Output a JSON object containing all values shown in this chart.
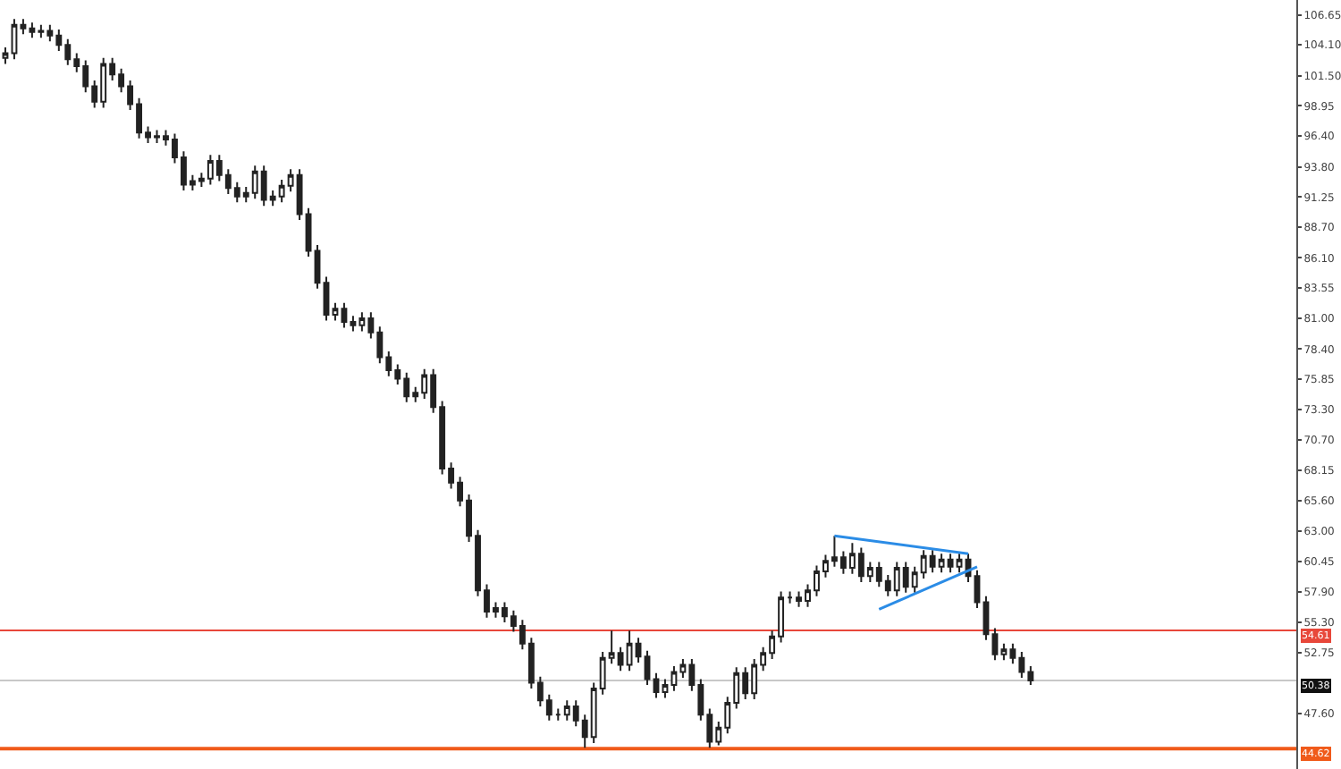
{
  "chart_data": {
    "type": "candlestick",
    "color": "#222222",
    "categories": [
      null,
      null,
      null,
      null,
      null,
      null,
      null,
      null,
      null,
      null,
      null,
      null,
      null,
      null,
      null,
      null,
      null,
      null,
      null,
      null,
      null,
      null,
      null,
      null,
      null,
      null,
      null,
      null,
      null,
      null,
      null,
      null,
      null,
      null,
      null,
      null,
      null,
      null,
      null,
      null,
      null,
      null,
      null,
      null,
      null,
      null,
      null,
      null,
      null,
      null,
      null,
      null,
      null,
      null,
      null,
      null,
      null,
      null,
      null,
      null,
      null,
      null,
      null,
      null,
      null,
      null,
      null,
      null,
      null,
      null,
      null,
      null,
      null,
      null,
      null,
      null,
      null,
      null,
      null,
      null,
      null,
      null,
      null,
      null,
      null,
      null,
      null,
      null,
      null,
      null,
      null,
      null,
      null,
      null,
      null,
      null,
      null,
      null,
      null,
      null,
      null,
      null,
      null,
      null,
      null,
      null,
      null,
      null,
      null,
      null,
      null,
      null,
      null,
      null,
      null,
      null,
      null,
      null,
      null,
      null,
      null,
      null,
      null,
      null,
      null,
      null,
      null,
      null,
      null,
      null,
      null,
      null,
      null,
      null,
      null,
      null,
      null,
      null,
      null,
      null,
      null,
      null,
      null,
      null,
      null
    ],
    "ohlc": [
      [
        103.0,
        103.9,
        102.5,
        103.4
      ],
      [
        103.4,
        106.3,
        102.9,
        105.8
      ],
      [
        105.8,
        106.3,
        105.0,
        105.5
      ],
      [
        105.5,
        106.0,
        104.7,
        105.2
      ],
      [
        105.2,
        105.8,
        104.7,
        105.3
      ],
      [
        105.3,
        105.8,
        104.4,
        104.9
      ],
      [
        104.9,
        105.4,
        103.6,
        104.1
      ],
      [
        104.1,
        104.6,
        102.4,
        102.9
      ],
      [
        102.9,
        103.4,
        101.8,
        102.3
      ],
      [
        102.3,
        102.8,
        100.1,
        100.6
      ],
      [
        100.6,
        101.1,
        98.8,
        99.3
      ],
      [
        99.3,
        103.0,
        98.8,
        102.5
      ],
      [
        102.5,
        103.0,
        101.1,
        101.6
      ],
      [
        101.6,
        102.1,
        100.1,
        100.6
      ],
      [
        100.6,
        101.1,
        98.6,
        99.1
      ],
      [
        99.1,
        99.6,
        96.2,
        96.7
      ],
      [
        96.7,
        97.2,
        95.8,
        96.3
      ],
      [
        96.3,
        96.9,
        95.8,
        96.4
      ],
      [
        96.4,
        96.9,
        95.6,
        96.1
      ],
      [
        96.1,
        96.6,
        94.1,
        94.6
      ],
      [
        94.6,
        95.1,
        91.8,
        92.3
      ],
      [
        92.3,
        93.1,
        91.8,
        92.6
      ],
      [
        92.6,
        93.3,
        92.1,
        92.8
      ],
      [
        92.8,
        94.8,
        92.3,
        94.3
      ],
      [
        94.3,
        94.8,
        92.6,
        93.1
      ],
      [
        93.1,
        93.6,
        91.5,
        92.0
      ],
      [
        92.0,
        92.5,
        90.8,
        91.3
      ],
      [
        91.3,
        92.1,
        90.8,
        91.6
      ],
      [
        91.6,
        93.9,
        91.1,
        93.4
      ],
      [
        93.4,
        93.9,
        90.5,
        91.0
      ],
      [
        91.0,
        91.8,
        90.5,
        91.3
      ],
      [
        91.3,
        92.7,
        90.8,
        92.2
      ],
      [
        92.2,
        93.6,
        91.7,
        93.1
      ],
      [
        93.1,
        93.6,
        89.3,
        89.8
      ],
      [
        89.8,
        90.3,
        86.2,
        86.7
      ],
      [
        86.7,
        87.2,
        83.5,
        84.0
      ],
      [
        84.0,
        84.5,
        80.8,
        81.3
      ],
      [
        81.3,
        82.3,
        80.8,
        81.8
      ],
      [
        81.8,
        82.3,
        80.2,
        80.7
      ],
      [
        80.7,
        81.2,
        79.9,
        80.4
      ],
      [
        80.4,
        81.5,
        79.9,
        81.0
      ],
      [
        81.0,
        81.5,
        79.3,
        79.8
      ],
      [
        79.8,
        80.3,
        77.2,
        77.7
      ],
      [
        77.7,
        78.2,
        76.1,
        76.6
      ],
      [
        76.6,
        77.1,
        75.4,
        75.9
      ],
      [
        75.9,
        76.4,
        73.9,
        74.4
      ],
      [
        74.4,
        75.2,
        73.9,
        74.7
      ],
      [
        74.7,
        76.7,
        74.2,
        76.2
      ],
      [
        76.2,
        76.7,
        73.0,
        73.5
      ],
      [
        73.5,
        74.0,
        67.8,
        68.3
      ],
      [
        68.3,
        68.8,
        66.6,
        67.1
      ],
      [
        67.1,
        67.6,
        65.1,
        65.6
      ],
      [
        65.6,
        66.1,
        62.1,
        62.6
      ],
      [
        62.6,
        63.1,
        57.5,
        58.0
      ],
      [
        58.0,
        58.5,
        55.7,
        56.2
      ],
      [
        56.2,
        57.0,
        55.7,
        56.5
      ],
      [
        56.5,
        57.0,
        55.3,
        55.8
      ],
      [
        55.8,
        56.3,
        54.5,
        55.0
      ],
      [
        55.0,
        55.5,
        53.0,
        53.5
      ],
      [
        53.5,
        54.0,
        49.7,
        50.2
      ],
      [
        50.2,
        50.7,
        48.2,
        48.7
      ],
      [
        48.7,
        49.2,
        47.0,
        47.5
      ],
      [
        47.5,
        48.0,
        47.0,
        47.5
      ],
      [
        47.5,
        48.7,
        47.0,
        48.2
      ],
      [
        48.2,
        48.7,
        46.5,
        47.0
      ],
      [
        47.0,
        47.5,
        44.7,
        45.6
      ],
      [
        45.6,
        50.2,
        45.1,
        49.7
      ],
      [
        49.7,
        52.8,
        49.2,
        52.3
      ],
      [
        52.3,
        54.6,
        51.8,
        52.7
      ],
      [
        52.7,
        53.2,
        51.2,
        51.7
      ],
      [
        51.7,
        54.6,
        51.2,
        53.5
      ],
      [
        53.5,
        54.0,
        51.9,
        52.4
      ],
      [
        52.4,
        52.9,
        50.0,
        50.5
      ],
      [
        50.5,
        51.0,
        48.9,
        49.4
      ],
      [
        49.4,
        50.5,
        48.9,
        50.0
      ],
      [
        50.0,
        51.6,
        49.5,
        51.1
      ],
      [
        51.1,
        52.2,
        50.6,
        51.7
      ],
      [
        51.7,
        52.2,
        49.5,
        50.0
      ],
      [
        50.0,
        50.5,
        47.0,
        47.5
      ],
      [
        47.5,
        48.0,
        44.7,
        45.2
      ],
      [
        45.2,
        46.9,
        44.9,
        46.4
      ],
      [
        46.4,
        49.0,
        45.9,
        48.5
      ],
      [
        48.5,
        51.5,
        48.0,
        51.0
      ],
      [
        51.0,
        51.5,
        48.8,
        49.3
      ],
      [
        49.3,
        52.2,
        48.8,
        51.7
      ],
      [
        51.7,
        53.2,
        51.2,
        52.7
      ],
      [
        52.7,
        54.6,
        52.2,
        54.1
      ],
      [
        54.1,
        57.9,
        53.6,
        57.4
      ],
      [
        57.4,
        57.9,
        56.9,
        57.4
      ],
      [
        57.4,
        57.9,
        56.6,
        57.1
      ],
      [
        57.1,
        58.5,
        56.6,
        58.0
      ],
      [
        58.0,
        60.1,
        57.5,
        59.6
      ],
      [
        59.6,
        61.0,
        59.1,
        60.5
      ],
      [
        60.5,
        62.6,
        60.0,
        60.8
      ],
      [
        60.8,
        61.3,
        59.4,
        59.9
      ],
      [
        59.9,
        62.0,
        59.4,
        61.1
      ],
      [
        61.1,
        61.6,
        58.7,
        59.2
      ],
      [
        59.2,
        60.4,
        58.7,
        59.9
      ],
      [
        59.9,
        60.4,
        58.3,
        58.8
      ],
      [
        58.8,
        59.3,
        57.5,
        58.0
      ],
      [
        58.0,
        60.4,
        57.5,
        59.9
      ],
      [
        59.9,
        60.4,
        57.8,
        58.3
      ],
      [
        58.3,
        60.0,
        57.8,
        59.5
      ],
      [
        59.5,
        61.4,
        59.0,
        60.9
      ],
      [
        60.9,
        61.4,
        59.5,
        60.0
      ],
      [
        60.0,
        61.1,
        59.5,
        60.6
      ],
      [
        60.6,
        61.1,
        59.5,
        60.0
      ],
      [
        60.0,
        61.1,
        59.5,
        60.6
      ],
      [
        60.6,
        61.1,
        58.7,
        59.2
      ],
      [
        59.2,
        59.7,
        56.5,
        57.0
      ],
      [
        57.0,
        57.5,
        53.8,
        54.3
      ],
      [
        54.3,
        54.8,
        52.1,
        52.6
      ],
      [
        52.6,
        53.5,
        52.1,
        53.0
      ],
      [
        53.0,
        53.5,
        51.8,
        52.3
      ],
      [
        52.3,
        52.8,
        50.6,
        51.1
      ],
      [
        51.1,
        51.6,
        50.0,
        50.38
      ],
      null,
      null,
      null,
      null,
      null,
      null,
      null,
      null,
      null,
      null,
      null,
      null,
      null,
      null,
      null,
      null,
      null,
      null,
      null,
      null,
      null,
      null,
      null,
      null,
      null,
      null,
      null,
      null,
      null
    ],
    "series": [
      {
        "type": "line",
        "color": "#2b8ce6",
        "values": [
          null,
          null,
          null,
          null,
          null,
          null,
          null,
          null,
          null,
          null,
          null,
          null,
          null,
          null,
          null,
          null,
          null,
          null,
          null,
          null,
          null,
          null,
          null,
          null,
          null,
          null,
          null,
          null,
          null,
          null,
          null,
          null,
          null,
          null,
          null,
          null,
          null,
          null,
          null,
          null,
          null,
          null,
          null,
          null,
          null,
          null,
          null,
          null,
          null,
          null,
          null,
          null,
          null,
          null,
          null,
          null,
          null,
          null,
          null,
          null,
          null,
          null,
          null,
          null,
          null,
          null,
          null,
          null,
          null,
          null,
          null,
          null,
          null,
          null,
          null,
          null,
          null,
          null,
          null,
          null,
          null,
          null,
          null,
          null,
          null,
          null,
          null,
          null,
          null,
          null,
          null,
          null,
          null,
          62.6,
          null,
          null,
          null,
          null,
          null,
          null,
          null,
          null,
          null,
          null,
          null,
          null,
          null,
          null,
          61.1,
          null,
          null,
          null,
          null,
          null,
          null,
          null,
          null,
          null,
          null,
          null,
          null,
          null,
          null,
          null,
          null,
          null,
          null,
          null,
          null,
          null,
          null,
          null,
          null,
          null,
          null,
          null,
          null,
          null,
          null,
          null,
          null,
          null,
          null,
          null,
          null
        ]
      },
      {
        "type": "line",
        "color": "#2b8ce6",
        "values": [
          null,
          null,
          null,
          null,
          null,
          null,
          null,
          null,
          null,
          null,
          null,
          null,
          null,
          null,
          null,
          null,
          null,
          null,
          null,
          null,
          null,
          null,
          null,
          null,
          null,
          null,
          null,
          null,
          null,
          null,
          null,
          null,
          null,
          null,
          null,
          null,
          null,
          null,
          null,
          null,
          null,
          null,
          null,
          null,
          null,
          null,
          null,
          null,
          null,
          null,
          null,
          null,
          null,
          null,
          null,
          null,
          null,
          null,
          null,
          null,
          null,
          null,
          null,
          null,
          null,
          null,
          null,
          null,
          null,
          null,
          null,
          null,
          null,
          null,
          null,
          null,
          null,
          null,
          null,
          null,
          null,
          null,
          null,
          null,
          null,
          null,
          null,
          null,
          null,
          null,
          null,
          null,
          null,
          null,
          null,
          null,
          null,
          null,
          56.4,
          null,
          null,
          null,
          null,
          null,
          null,
          null,
          null,
          null,
          null,
          60.0,
          null,
          null,
          null,
          null,
          null,
          null,
          null,
          null,
          null,
          null,
          null,
          null,
          null,
          null,
          null,
          null,
          null,
          null,
          null,
          null,
          null,
          null,
          null,
          null,
          null,
          null,
          null,
          null,
          null,
          null,
          null,
          null,
          null,
          null,
          null
        ]
      }
    ],
    "ylim": [
      42.9,
      107.9
    ],
    "yticks": [
      106.65,
      {
        "value": 104.1,
        "label": "104.10"
      },
      {
        "value": 101.5,
        "label": "101.50"
      },
      98.95,
      {
        "value": 96.4,
        "label": "96.40"
      },
      {
        "value": 93.8,
        "label": "93.80"
      },
      91.25,
      {
        "value": 88.7,
        "label": "88.70"
      },
      {
        "value": 86.1,
        "label": "86.10"
      },
      83.55,
      {
        "value": 81.0,
        "label": "81.00"
      },
      {
        "value": 78.4,
        "label": "78.40"
      },
      75.85,
      {
        "value": 73.3,
        "label": "73.30"
      },
      {
        "value": 70.7,
        "label": "70.70"
      },
      68.15,
      {
        "value": 65.6,
        "label": "65.60"
      },
      {
        "value": 63.0,
        "label": "63.00"
      },
      60.45,
      {
        "value": 57.9,
        "label": "57.90"
      },
      {
        "value": 55.3,
        "label": "55.30"
      },
      52.75,
      {
        "value": 47.6,
        "label": "47.60"
      }
    ],
    "ref_lines": [
      {
        "axis": "y",
        "value": 54.61,
        "label": "54.61",
        "color": "#e8473a"
      },
      {
        "axis": "y",
        "value": 50.38,
        "label": "50.38",
        "color": "#c8c8c8"
      },
      {
        "axis": "y",
        "value": 44.62,
        "label": "44.62",
        "color": "#f05a1a"
      }
    ],
    "tick_labels": "y"
  }
}
